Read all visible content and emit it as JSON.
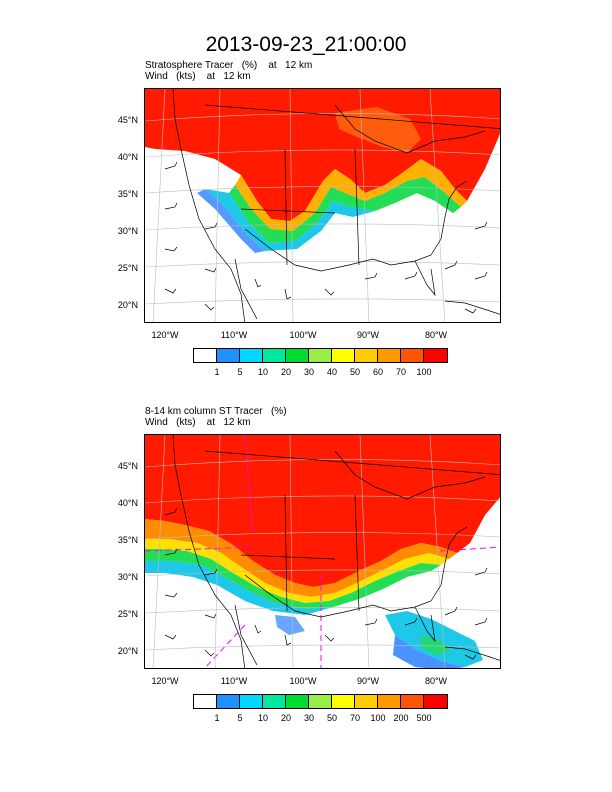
{
  "title": "2013-09-23_21:00:00",
  "panels": [
    {
      "line1": "Stratosphere Tracer   (%)    at   12 km",
      "line2": "Wind   (kts)    at   12 km",
      "lat_labels": [
        "45°N",
        "40°N",
        "35°N",
        "30°N",
        "25°N",
        "20°N"
      ],
      "lon_labels": [
        "120°W",
        "110°W",
        "100°W",
        "90°W",
        "80°W"
      ],
      "colorbar_colors": [
        "#ffffff",
        "#1e90ff",
        "#00d8ff",
        "#00e8a0",
        "#00dd30",
        "#99ee44",
        "#ffff00",
        "#ffcc00",
        "#ff9900",
        "#ff5500",
        "#ff0000"
      ],
      "colorbar_labels": [
        "1",
        "5",
        "10",
        "20",
        "30",
        "40",
        "50",
        "60",
        "70",
        "100"
      ]
    },
    {
      "line1": "8-14 km column ST Tracer   (%)",
      "line2": "Wind   (kts)    at   12 km",
      "lat_labels": [
        "45°N",
        "40°N",
        "35°N",
        "30°N",
        "25°N",
        "20°N"
      ],
      "lon_labels": [
        "120°W",
        "110°W",
        "100°W",
        "90°W",
        "80°W"
      ],
      "colorbar_colors": [
        "#ffffff",
        "#1e90ff",
        "#00d8ff",
        "#00e8a0",
        "#00dd30",
        "#99ee44",
        "#ffff00",
        "#ffcc00",
        "#ff9900",
        "#ff5500",
        "#ff0000"
      ],
      "colorbar_labels": [
        "1",
        "5",
        "10",
        "20",
        "30",
        "50",
        "70",
        "100",
        "200",
        "500"
      ]
    }
  ]
}
